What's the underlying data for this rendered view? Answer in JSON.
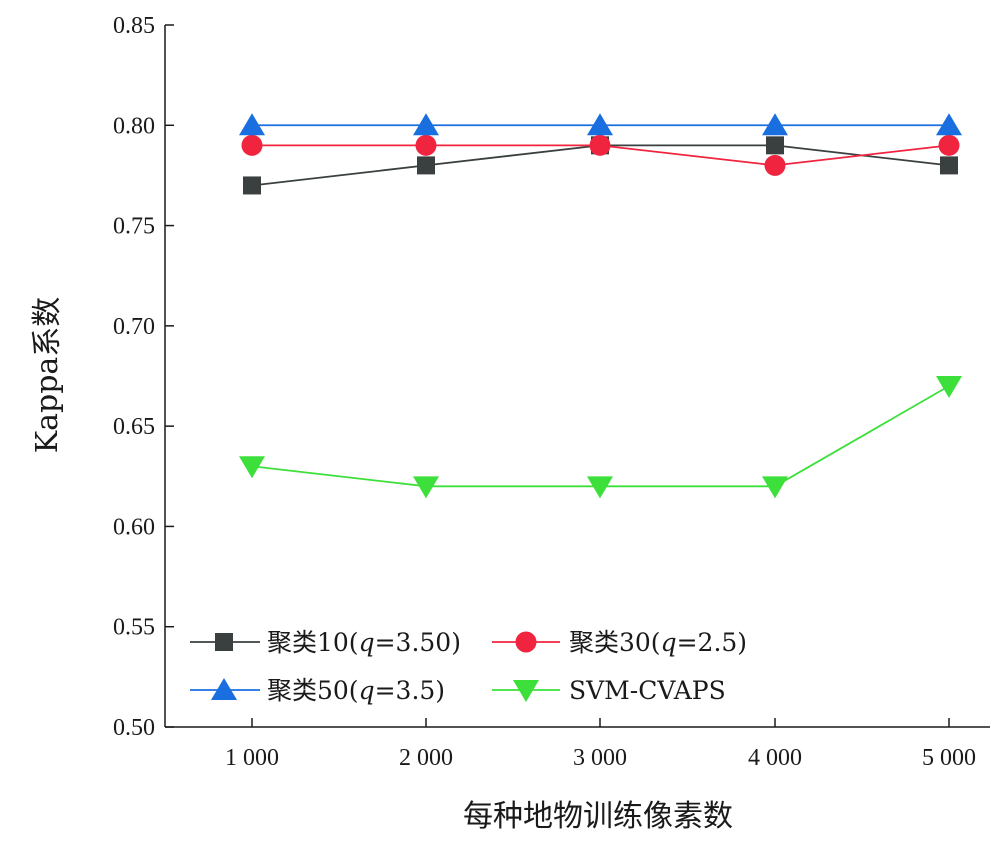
{
  "chart_data": {
    "type": "line",
    "x": [
      1000,
      2000,
      3000,
      4000,
      5000
    ],
    "x_tick_labels": [
      "1 000",
      "2 000",
      "3 000",
      "4 000",
      "5 000"
    ],
    "xlabel": "每种地物训练像素数",
    "ylabel": "Kappa系数",
    "ylim": [
      0.5,
      0.85
    ],
    "y_ticks": [
      "0.50",
      "0.55",
      "0.60",
      "0.65",
      "0.70",
      "0.75",
      "0.80",
      "0.85"
    ],
    "grid": false,
    "legend_position": "bottom-left",
    "series": [
      {
        "name": "聚类10(q=3.50)",
        "legend_prefix": "聚类10(",
        "legend_var": "q",
        "legend_suffix": "=3.50)",
        "marker": "square",
        "color": "#3a3f3f",
        "line_color": "#3a3f3f",
        "values": [
          0.77,
          0.78,
          0.79,
          0.79,
          0.78
        ]
      },
      {
        "name": "聚类30(q=2.5)",
        "legend_prefix": "聚类30(",
        "legend_var": "q",
        "legend_suffix": "=2.5)",
        "marker": "circle",
        "color": "#f0243f",
        "line_color": "#f0243f",
        "values": [
          0.79,
          0.79,
          0.79,
          0.78,
          0.79
        ]
      },
      {
        "name": "聚类50(q=3.5)",
        "legend_prefix": "聚类50(",
        "legend_var": "q",
        "legend_suffix": "=3.5)",
        "marker": "triangle-up",
        "color": "#1a6fe0",
        "line_color": "#1a6fe0",
        "values": [
          0.8,
          0.8,
          0.8,
          0.8,
          0.8
        ]
      },
      {
        "name": "SVM-CVAPS",
        "legend_prefix": "SVM-CVAPS",
        "legend_var": "",
        "legend_suffix": "",
        "marker": "triangle-down",
        "color": "#3de03a",
        "line_color": "#3de03a",
        "values": [
          0.63,
          0.62,
          0.62,
          0.62,
          0.67
        ]
      }
    ]
  }
}
